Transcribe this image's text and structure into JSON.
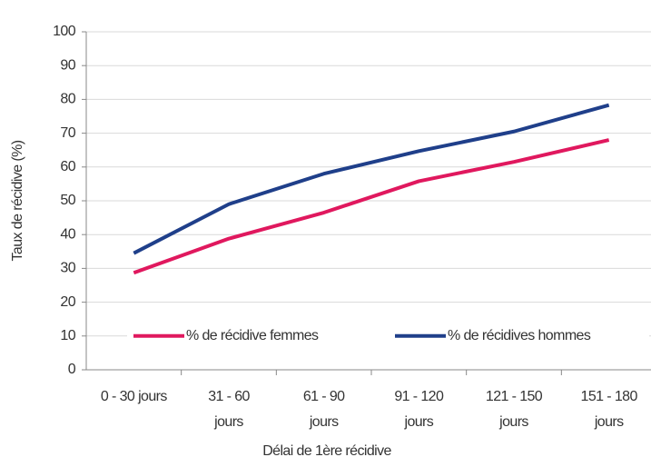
{
  "chart_data": {
    "type": "line",
    "x_label": "Délai de 1ère récidive",
    "y_label": "Taux de récidive (%)",
    "categories": [
      [
        "0 - 30 jours"
      ],
      [
        "31 - 60",
        "jours"
      ],
      [
        "61 - 90",
        "jours"
      ],
      [
        "91 - 120",
        "jours"
      ],
      [
        "121 - 150",
        "jours"
      ],
      [
        "151 - 180",
        "jours"
      ]
    ],
    "series": [
      {
        "name": "% de récidive femmes",
        "color": "#e0185e",
        "values": [
          28.7,
          38.8,
          46.5,
          55.8,
          61.5,
          68
        ]
      },
      {
        "name": "% de récidives hommes",
        "color": "#1f3f8a",
        "values": [
          34.5,
          49,
          58,
          64.7,
          70.5,
          78.3
        ]
      }
    ],
    "ylim": [
      0,
      100
    ],
    "yticks": [
      0,
      10,
      20,
      30,
      40,
      50,
      60,
      70,
      80,
      90,
      100
    ],
    "grid": true,
    "legend": "bottom"
  }
}
